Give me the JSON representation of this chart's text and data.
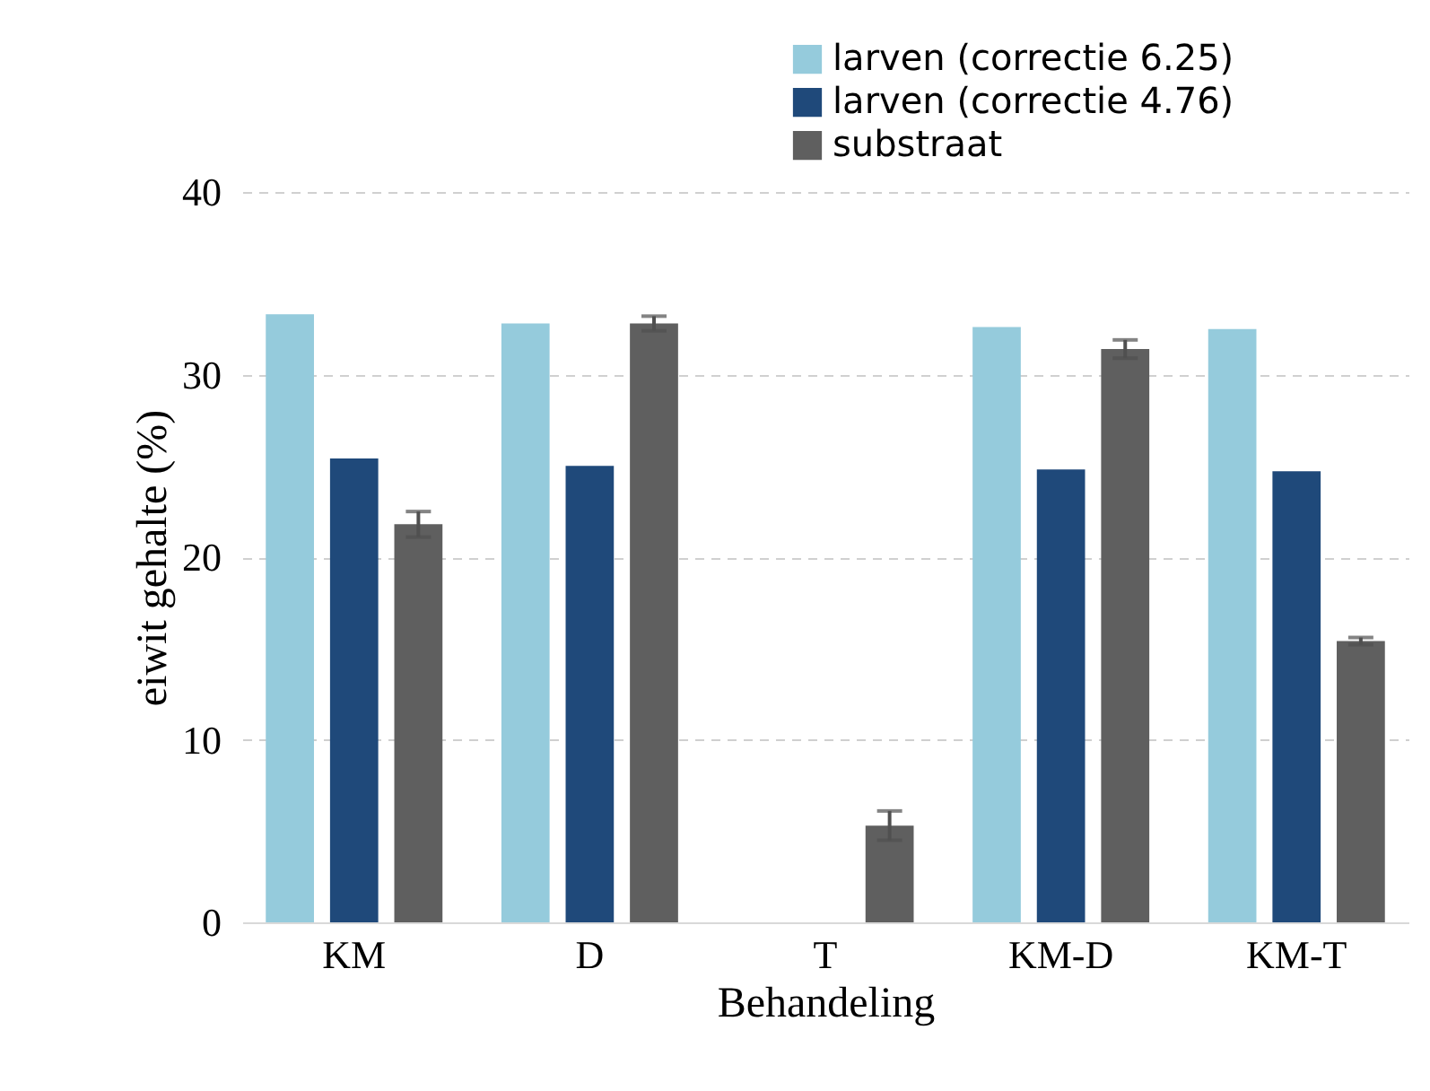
{
  "chart_data": {
    "type": "bar",
    "xlabel": "Behandeling",
    "ylabel": "eiwit gehalte (%)",
    "categories": [
      "KM",
      "D",
      "T",
      "KM-D",
      "KM-T"
    ],
    "series": [
      {
        "name": "larven (correctie 6.25)",
        "color": "#95cbdc",
        "values": [
          33.3,
          32.8,
          null,
          32.6,
          32.5
        ]
      },
      {
        "name": "larven (correctie 4.76)",
        "color": "#1f497a",
        "values": [
          25.4,
          25.0,
          null,
          24.8,
          24.7
        ]
      },
      {
        "name": "substraat",
        "color": "#5f5f5f",
        "values": [
          21.8,
          32.8,
          5.3,
          31.4,
          15.4
        ],
        "errors": [
          0.7,
          0.4,
          0.8,
          0.5,
          0.2
        ]
      }
    ],
    "ylim": [
      0,
      40
    ],
    "yticks": [
      0,
      10,
      20,
      30,
      40
    ],
    "grid": "y",
    "legend": "top right"
  }
}
